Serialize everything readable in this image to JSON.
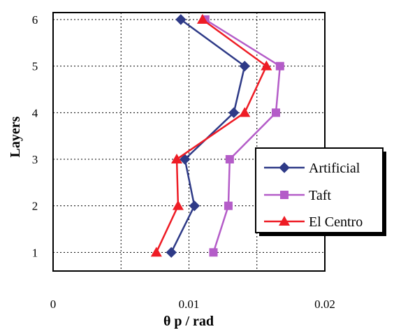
{
  "chart_data": {
    "type": "line",
    "xlabel": "θ p / rad",
    "ylabel": "Layers",
    "xlim": [
      0,
      0.02
    ],
    "ylim": [
      1,
      6
    ],
    "x_ticks": [
      "0",
      "0.01",
      "0.02"
    ],
    "y_ticks": [
      "1",
      "2",
      "3",
      "4",
      "5",
      "6"
    ],
    "grid": true,
    "legend_position": "right",
    "series": [
      {
        "name": "Artificial",
        "color": "#2e3a87",
        "marker": "diamond",
        "x": [
          0.0087,
          0.0104,
          0.0097,
          0.0133,
          0.0141,
          0.0094
        ],
        "y": [
          1,
          2,
          3,
          4,
          5,
          6
        ]
      },
      {
        "name": "Taft",
        "color": "#b45cc8",
        "marker": "square",
        "x": [
          0.0118,
          0.0129,
          0.013,
          0.0164,
          0.0167,
          0.0112
        ],
        "y": [
          1,
          2,
          3,
          4,
          5,
          6
        ]
      },
      {
        "name": "El Centro",
        "color": "#ee1c25",
        "marker": "triangle",
        "x": [
          0.0076,
          0.0092,
          0.0091,
          0.0141,
          0.0157,
          0.011
        ],
        "y": [
          1,
          2,
          3,
          4,
          5,
          6
        ]
      }
    ]
  }
}
